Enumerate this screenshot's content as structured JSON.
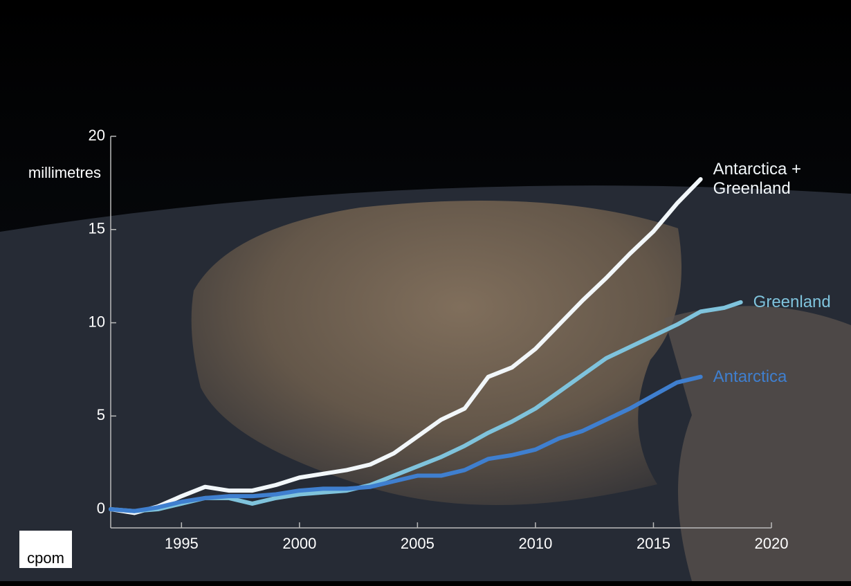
{
  "chart_data": {
    "type": "line",
    "y_axis_label": "millimetres",
    "x": [
      1992,
      1993,
      1994,
      1995,
      1996,
      1997,
      1998,
      1999,
      2000,
      2001,
      2002,
      2003,
      2004,
      2005,
      2006,
      2007,
      2008,
      2009,
      2010,
      2011,
      2012,
      2013,
      2014,
      2015,
      2016,
      2017,
      2018,
      2018.7
    ],
    "series": [
      {
        "name": "Antarctica + Greenland",
        "color": "#f2f7fa",
        "values": [
          0,
          -0.2,
          0.15,
          0.7,
          1.2,
          1.0,
          1.0,
          1.3,
          1.7,
          1.9,
          2.1,
          2.4,
          3.0,
          3.9,
          4.8,
          5.4,
          7.1,
          7.6,
          8.6,
          9.9,
          11.2,
          12.4,
          13.7,
          14.9,
          16.4,
          17.7,
          null,
          null
        ]
      },
      {
        "name": "Greenland",
        "color": "#7fc3dc",
        "values": [
          0,
          -0.1,
          0.0,
          0.3,
          0.6,
          0.6,
          0.3,
          0.6,
          0.8,
          0.9,
          1.0,
          1.3,
          1.8,
          2.3,
          2.8,
          3.4,
          4.1,
          4.7,
          5.4,
          6.3,
          7.2,
          8.1,
          8.7,
          9.3,
          9.9,
          10.6,
          10.8,
          11.1
        ]
      },
      {
        "name": "Antarctica",
        "color": "#3f7fcf",
        "values": [
          0,
          -0.1,
          0.1,
          0.4,
          0.6,
          0.7,
          0.7,
          0.8,
          1.0,
          1.1,
          1.1,
          1.2,
          1.5,
          1.8,
          1.8,
          2.1,
          2.7,
          2.9,
          3.2,
          3.8,
          4.2,
          4.8,
          5.4,
          6.1,
          6.8,
          7.1,
          null,
          null
        ]
      }
    ],
    "xlim": [
      1992,
      2020
    ],
    "xticks": [
      1995,
      2000,
      2005,
      2010,
      2015,
      2020
    ],
    "ylim": [
      -1,
      20
    ],
    "yticks": [
      0,
      5,
      10,
      15,
      20
    ]
  },
  "logo": {
    "text": "cpom"
  }
}
